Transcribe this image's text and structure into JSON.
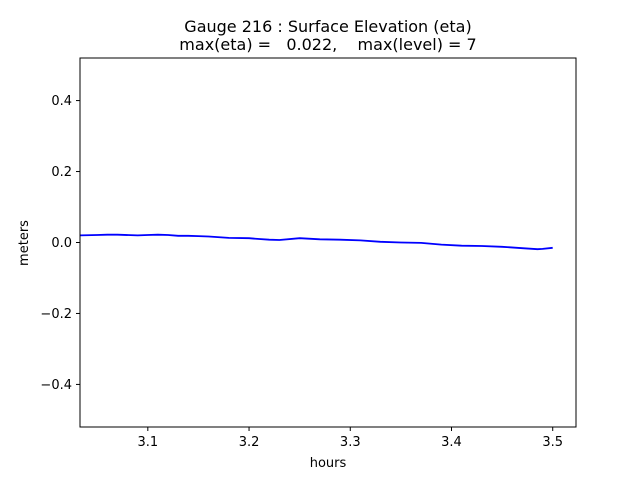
{
  "chart_data": {
    "type": "line",
    "title": "Gauge 216 : Surface Elevation (eta)",
    "subtitle": "max(eta) =   0.022,    max(level) = 7",
    "xlabel": "hours",
    "ylabel": "meters",
    "xlim": [
      3.033,
      3.523
    ],
    "ylim": [
      -0.52,
      0.52
    ],
    "xticks": [
      3.1,
      3.2,
      3.3,
      3.4,
      3.5
    ],
    "xtick_labels": [
      "3.1",
      "3.2",
      "3.3",
      "3.4",
      "3.5"
    ],
    "yticks": [
      0.4,
      0.2,
      0.0,
      -0.2,
      -0.4
    ],
    "ytick_labels": [
      "0.4",
      "0.2",
      "0.0",
      "−0.2",
      "−0.4"
    ],
    "grid": false,
    "series": [
      {
        "color": "#0000ff",
        "x": [
          3.033,
          3.05,
          3.06,
          3.07,
          3.09,
          3.1,
          3.11,
          3.12,
          3.13,
          3.14,
          3.15,
          3.16,
          3.18,
          3.2,
          3.21,
          3.22,
          3.23,
          3.25,
          3.27,
          3.29,
          3.31,
          3.33,
          3.35,
          3.37,
          3.39,
          3.41,
          3.43,
          3.45,
          3.47,
          3.485,
          3.49,
          3.5
        ],
        "y": [
          0.02,
          0.021,
          0.022,
          0.022,
          0.02,
          0.021,
          0.022,
          0.021,
          0.019,
          0.019,
          0.018,
          0.017,
          0.013,
          0.012,
          0.01,
          0.008,
          0.007,
          0.012,
          0.009,
          0.008,
          0.006,
          0.002,
          0.0,
          -0.001,
          -0.006,
          -0.009,
          -0.01,
          -0.012,
          -0.016,
          -0.019,
          -0.018,
          -0.015
        ]
      }
    ]
  }
}
